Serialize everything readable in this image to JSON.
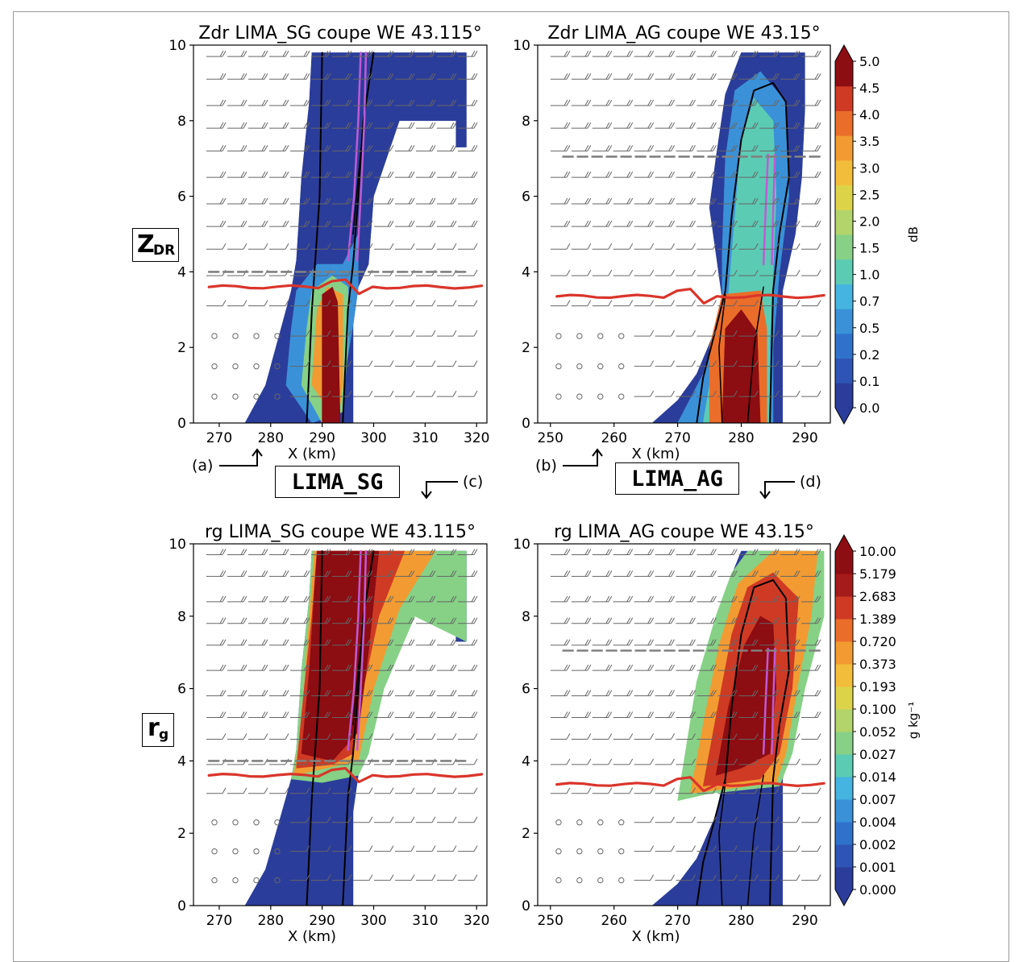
{
  "panels": [
    {
      "id": "a",
      "title": "Zdr LIMA_SG coupe WE 43.115°",
      "xlabel": "X (km)",
      "x_ticks": [
        270,
        280,
        290,
        300,
        310,
        320
      ],
      "y_ticks": [
        0,
        2,
        4,
        6,
        8,
        10
      ]
    },
    {
      "id": "b",
      "title": "Zdr LIMA_AG coupe WE 43.15°",
      "xlabel": "X (km)",
      "x_ticks": [
        250,
        260,
        270,
        280,
        290
      ],
      "y_ticks": [
        0,
        2,
        4,
        6,
        8,
        10
      ]
    },
    {
      "id": "c",
      "title": "rg LIMA_SG coupe WE 43.115°",
      "xlabel": "X (km)",
      "x_ticks": [
        270,
        280,
        290,
        300,
        310,
        320
      ],
      "y_ticks": [
        0,
        2,
        4,
        6,
        8,
        10
      ]
    },
    {
      "id": "d",
      "title": "rg LIMA_AG coupe WE 43.15°",
      "xlabel": "X (km)",
      "x_ticks": [
        250,
        260,
        270,
        280,
        290
      ],
      "y_ticks": [
        0,
        2,
        4,
        6,
        8,
        10
      ]
    }
  ],
  "colorbars": [
    {
      "label": "dB",
      "ticks": [
        "0.0",
        "0.1",
        "0.2",
        "0.5",
        "0.7",
        "1.0",
        "1.5",
        "2.0",
        "2.5",
        "3.0",
        "3.5",
        "4.0",
        "4.5",
        "5.0"
      ]
    },
    {
      "label": "g kg⁻¹",
      "ticks": [
        "0.000",
        "0.001",
        "0.002",
        "0.004",
        "0.007",
        "0.014",
        "0.027",
        "0.052",
        "0.100",
        "0.193",
        "0.373",
        "0.720",
        "1.389",
        "2.683",
        "5.179",
        "10.00"
      ]
    }
  ],
  "annotations": {
    "row1_main": "Z",
    "row1_sub": "DR",
    "row2_main": "r",
    "row2_sub": "g",
    "model_sg": "LIMA_SG",
    "model_ag": "LIMA_AG",
    "tag_a": "(a)",
    "tag_b": "(b)",
    "tag_c": "(c)",
    "tag_d": "(d)"
  },
  "chart_data": [
    {
      "panel": "a",
      "type": "heatmap",
      "variable": "Zdr",
      "unit": "dB",
      "x_range": [
        265,
        322
      ],
      "y_range": [
        0,
        10
      ],
      "freezing_level_km": 3.6,
      "dashed_level_km": 4.0,
      "core_x_km": [
        290,
        293
      ],
      "core_top_km": 3.5,
      "anvil_top_km": 9.8,
      "anvil_x_km": [
        292,
        318
      ]
    },
    {
      "panel": "b",
      "type": "heatmap",
      "variable": "Zdr",
      "unit": "dB",
      "x_range": [
        248,
        294
      ],
      "y_range": [
        0,
        10
      ],
      "freezing_level_km": 3.35,
      "dashed_level_km": 7.05,
      "core_x_km": [
        276,
        283
      ],
      "core_top_km": 3.4,
      "anvil_top_km": 9.8,
      "anvil_x_km": [
        276,
        290
      ]
    },
    {
      "panel": "c",
      "type": "heatmap",
      "variable": "rg",
      "unit": "g kg-1",
      "x_range": [
        265,
        322
      ],
      "y_range": [
        0,
        10
      ],
      "freezing_level_km": 3.6,
      "dashed_level_km": 4.0,
      "max_core_x_km": [
        290,
        300
      ],
      "anvil_top_km": 9.8
    },
    {
      "panel": "d",
      "type": "heatmap",
      "variable": "rg",
      "unit": "g kg-1",
      "x_range": [
        248,
        294
      ],
      "y_range": [
        0,
        10
      ],
      "freezing_level_km": 3.35,
      "dashed_level_km": 7.05,
      "max_core_x_km": [
        276,
        286
      ],
      "anvil_top_km": 9.8
    }
  ],
  "colors": {
    "zdr": [
      "#2b3d9a",
      "#2e55b5",
      "#2f72cc",
      "#3a91d8",
      "#45b4e0",
      "#5ccbb4",
      "#86d186",
      "#b2d46a",
      "#ddd349",
      "#f2bd3a",
      "#f29b32",
      "#ea6d2a",
      "#cf3a24",
      "#8c0d12"
    ],
    "rg": [
      "#2b3d9a",
      "#2e55b5",
      "#2f72cc",
      "#3a91d8",
      "#45b4e0",
      "#5ccbb4",
      "#86d186",
      "#b2d46a",
      "#ddd349",
      "#f2bd3a",
      "#f29b32",
      "#ea6d2a",
      "#cf3a24",
      "#a51a1a",
      "#8c0d12"
    ]
  }
}
